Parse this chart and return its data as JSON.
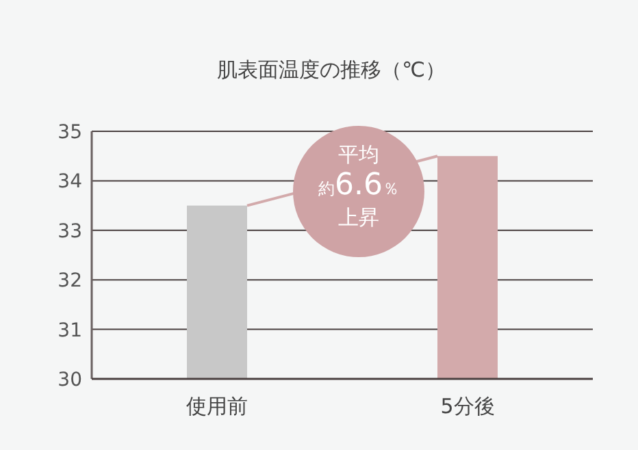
{
  "chart_data": {
    "type": "bar",
    "title": "肌表面温度の推移（℃）",
    "categories": [
      "使用前",
      "5分後"
    ],
    "values": [
      33.5,
      34.5
    ],
    "colors": [
      "#c8c8c8",
      "#d3aaab"
    ],
    "ylim": [
      30,
      35
    ],
    "yticks": [
      30,
      31,
      32,
      33,
      34,
      35
    ],
    "grid": "y",
    "annotations": [
      "平均",
      "約6.6％",
      "上昇"
    ]
  }
}
